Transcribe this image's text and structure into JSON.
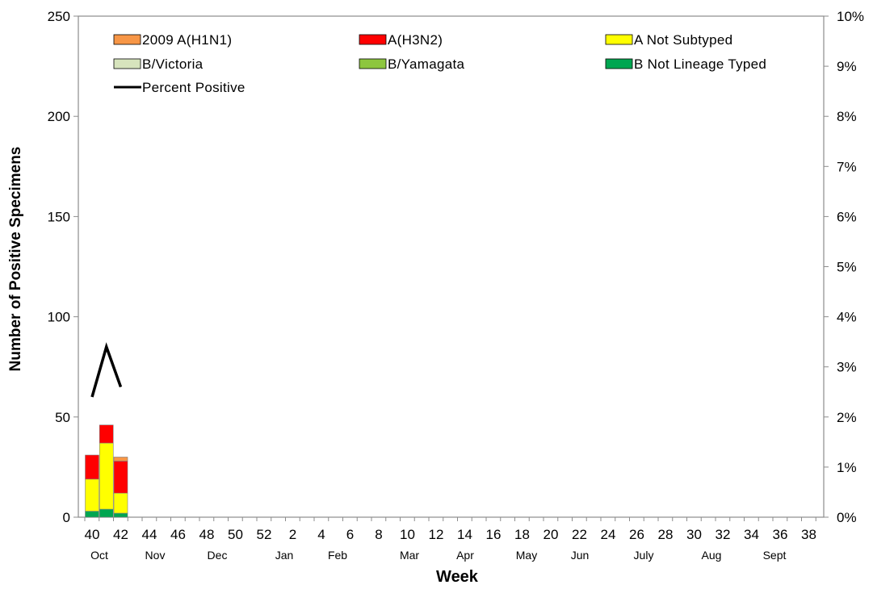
{
  "chart_data": {
    "type": "bar",
    "stacked": true,
    "xlabel": "Week",
    "ylabel": "Number of Positive Specimens",
    "ylim": [
      0,
      250
    ],
    "yticks": [
      "0",
      "50",
      "100",
      "150",
      "200",
      "250"
    ],
    "y2lim": [
      0,
      10
    ],
    "y2ticks": [
      "0%",
      "1%",
      "2%",
      "3%",
      "4%",
      "5%",
      "6%",
      "7%",
      "8%",
      "9%",
      "10%"
    ],
    "grid": false,
    "legend_position": "top-inside",
    "week_tick_labels": [
      "40",
      "42",
      "44",
      "46",
      "48",
      "50",
      "52",
      "2",
      "4",
      "6",
      "8",
      "10",
      "12",
      "14",
      "16",
      "18",
      "20",
      "22",
      "24",
      "26",
      "28",
      "30",
      "32",
      "34",
      "36",
      "38"
    ],
    "month_labels": [
      "Oct",
      "Nov",
      "Dec",
      "Jan",
      "Feb",
      "Mar",
      "Apr",
      "May",
      "Jun",
      "July",
      "Aug",
      "Sept"
    ],
    "categories": [
      "40",
      "41",
      "42"
    ],
    "series": [
      {
        "name": "B Not Lineage Typed",
        "color": "#00a651",
        "values": [
          3,
          4,
          2
        ]
      },
      {
        "name": "B/Yamagata",
        "color": "#8dc63f",
        "values": [
          0,
          0,
          0
        ]
      },
      {
        "name": "B/Victoria",
        "color": "#d7e4bd",
        "values": [
          0,
          0,
          0
        ]
      },
      {
        "name": "A Not Subtyped",
        "color": "#ffff00",
        "values": [
          16,
          33,
          10
        ]
      },
      {
        "name": "A(H3N2)",
        "color": "#ff0000",
        "values": [
          12,
          9,
          16
        ]
      },
      {
        "name": "2009 A(H1N1)",
        "color": "#f79646",
        "values": [
          0,
          0,
          2
        ]
      }
    ],
    "line_series": {
      "name": "Percent Positive",
      "color": "#000000",
      "values": [
        2.4,
        3.4,
        2.6
      ]
    },
    "legend_order": [
      "2009 A(H1N1)",
      "A(H3N2)",
      "A Not Subtyped",
      "B/Victoria",
      "B/Yamagata",
      "B Not Lineage Typed",
      "Percent Positive"
    ]
  }
}
